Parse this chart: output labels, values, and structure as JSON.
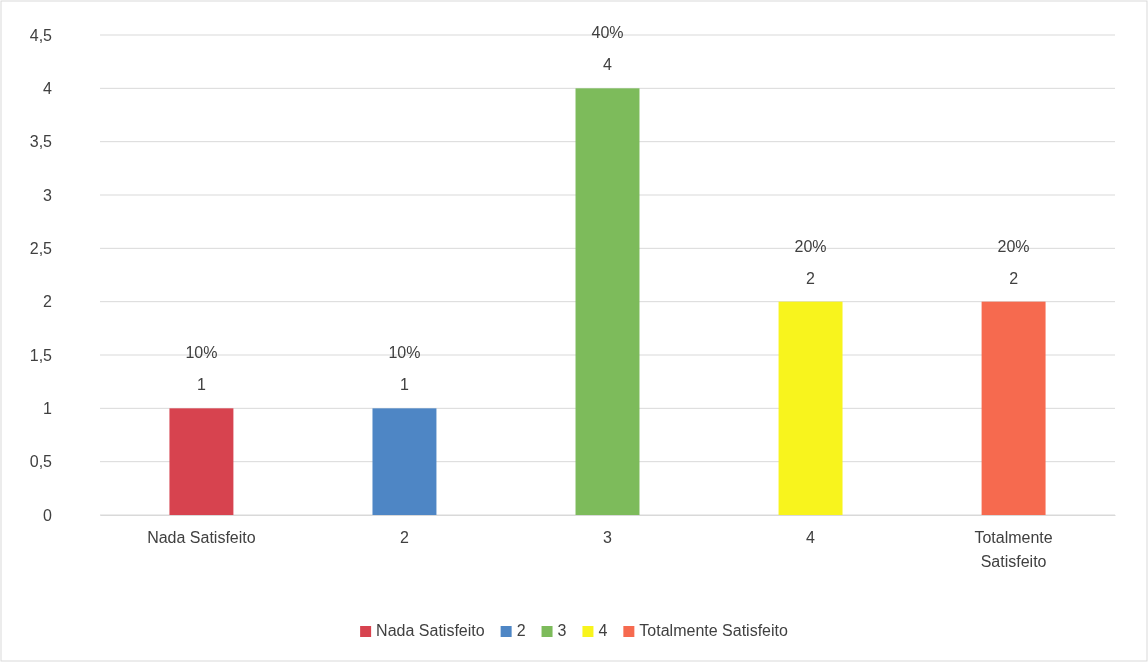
{
  "chart_data": {
    "type": "bar",
    "categories": [
      "Nada Satisfeito",
      "2",
      "3",
      "4",
      "Totalmente Satisfeito"
    ],
    "series": [
      {
        "name": "Nada Satisfeito",
        "color": "#d7434f",
        "values": [
          1,
          null,
          null,
          null,
          null
        ]
      },
      {
        "name": "2",
        "color": "#4e86c5",
        "values": [
          null,
          1,
          null,
          null,
          null
        ]
      },
      {
        "name": "3",
        "color": "#7dbb5b",
        "values": [
          null,
          null,
          4,
          null,
          null
        ]
      },
      {
        "name": "4",
        "color": "#f8f41d",
        "values": [
          null,
          null,
          null,
          2,
          null
        ]
      },
      {
        "name": "Totalmente Satisfeito",
        "color": "#f66a4f",
        "values": [
          null,
          null,
          null,
          null,
          2
        ]
      }
    ],
    "ylim": [
      0,
      4.5
    ],
    "yticks": [
      0,
      {
        "value": 0.5,
        "label": "0,5"
      },
      1,
      {
        "value": 1.5,
        "label": "1,5"
      },
      2,
      {
        "value": 2.5,
        "label": "2,5"
      },
      3,
      {
        "value": 3.5,
        "label": "3,5"
      },
      4,
      {
        "value": 4.5,
        "label": "4,5"
      }
    ],
    "grid": "y",
    "legend": "bottom",
    "data_labels": true,
    "annotations": [
      {
        "text": "10%",
        "x": "Nada Satisfeito",
        "y": 1
      },
      {
        "text": "10%",
        "x": "2",
        "y": 1
      },
      {
        "text": "40%",
        "x": "3",
        "y": 4
      },
      {
        "text": "20%",
        "x": "4",
        "y": 2
      },
      {
        "text": "20%",
        "x": "Totalmente Satisfeito",
        "y": 2
      }
    ]
  }
}
